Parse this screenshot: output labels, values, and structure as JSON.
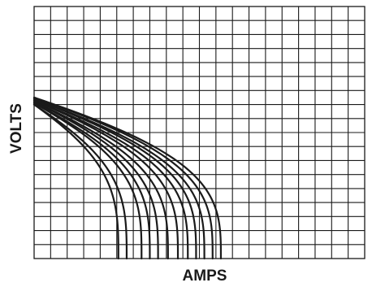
{
  "chart_data": {
    "type": "line",
    "title": "",
    "xlabel": "AMPS",
    "ylabel": "VOLTS",
    "tick_labels": "none",
    "grid": true,
    "grid_divisions": {
      "x": 20,
      "y": 18
    },
    "xlim": [
      0,
      20
    ],
    "ylim": [
      0,
      18
    ],
    "line_color": "#1a1a1a",
    "series": [
      {
        "v0": 11.0,
        "i_max": 5.1
      },
      {
        "v0": 11.0,
        "i_max": 5.6
      },
      {
        "v0": 11.1,
        "i_max": 6.5
      },
      {
        "v0": 11.1,
        "i_max": 7.0
      },
      {
        "v0": 11.2,
        "i_max": 7.5
      },
      {
        "v0": 11.2,
        "i_max": 8.1
      },
      {
        "v0": 11.3,
        "i_max": 8.7
      },
      {
        "v0": 11.3,
        "i_max": 9.3
      },
      {
        "v0": 11.4,
        "i_max": 9.8
      },
      {
        "v0": 11.4,
        "i_max": 10.3
      },
      {
        "v0": 11.5,
        "i_max": 10.8
      },
      {
        "v0": 11.5,
        "i_max": 11.3
      }
    ]
  }
}
